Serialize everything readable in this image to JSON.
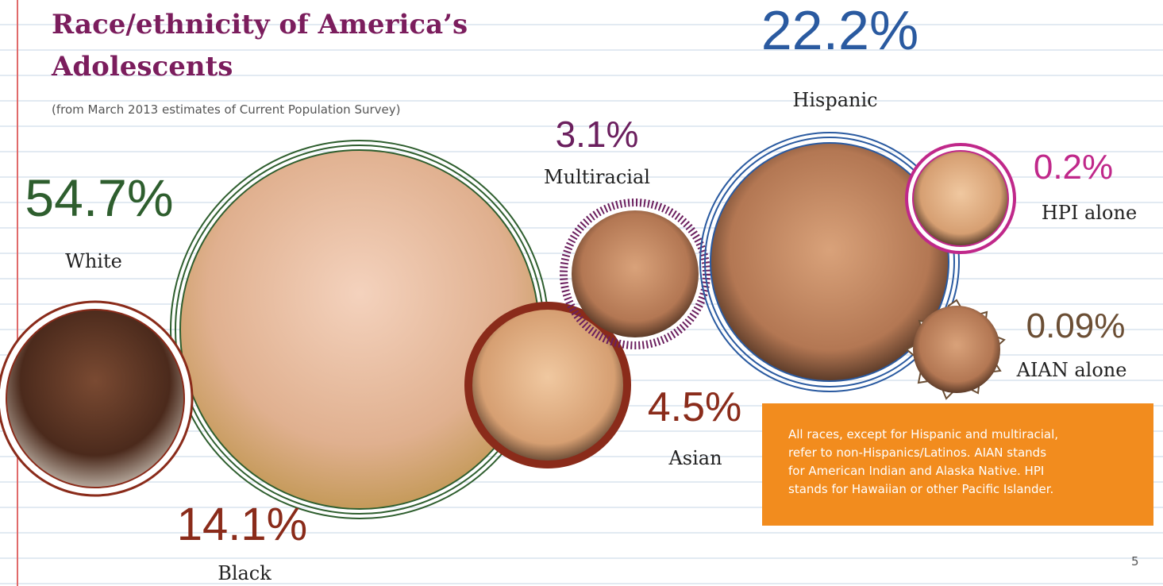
{
  "header": {
    "title": [
      "Race/ethnicity of America’s",
      "Adolescents"
    ],
    "subtitle": "(from March 2013 estimates of Current Population Survey)"
  },
  "groups": [
    {
      "value": "54.7%",
      "label": "White"
    },
    {
      "value": "14.1%",
      "label": "Black"
    },
    {
      "value": "3.1%",
      "label": "Multiracial"
    },
    {
      "value": "4.5%",
      "label": "Asian"
    },
    {
      "value": "22.2%",
      "label": "Hispanic"
    },
    {
      "value": "0.2%",
      "label": "HPI alone"
    },
    {
      "value": "0.09%",
      "label": "AIAN alone"
    }
  ],
  "note": [
    "All races, except for Hispanic and multiracial,",
    "refer to non-Hispanics/Latinos. AIAN stands",
    "for American Indian and Alaska Native. HPI",
    "stands for Hawaiian or other Pacific Islander."
  ],
  "page_number": "5"
}
